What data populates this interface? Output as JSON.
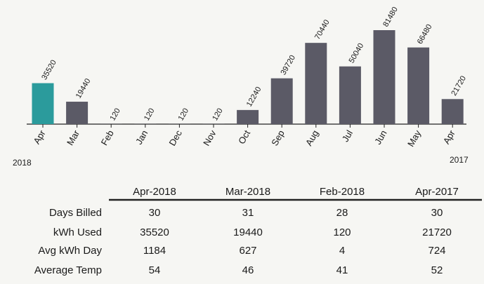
{
  "chart_data": {
    "type": "bar",
    "categories": [
      "Apr",
      "Mar",
      "Feb",
      "Jan",
      "Dec",
      "Nov",
      "Oct",
      "Sep",
      "Aug",
      "Jul",
      "Jun",
      "May",
      "Apr"
    ],
    "values": [
      35520,
      19440,
      120,
      120,
      120,
      120,
      12240,
      39720,
      70440,
      50040,
      81480,
      66480,
      21720
    ],
    "colors": [
      "#2b9b9c",
      "#5b5a66",
      "#5b5a66",
      "#5b5a66",
      "#5b5a66",
      "#5b5a66",
      "#5b5a66",
      "#5b5a66",
      "#5b5a66",
      "#5b5a66",
      "#5b5a66",
      "#5b5a66",
      "#5b5a66"
    ],
    "annotations": [
      "2018",
      "2017"
    ]
  },
  "table": {
    "columns": [
      "Apr-2018",
      "Mar-2018",
      "Feb-2018",
      "Apr-2017"
    ],
    "rows": [
      {
        "label": "Days Billed",
        "values": [
          30,
          31,
          28,
          30
        ]
      },
      {
        "label": "kWh Used",
        "values": [
          35520,
          19440,
          120,
          21720
        ]
      },
      {
        "label": "Avg kWh Day",
        "values": [
          1184,
          627,
          4,
          724
        ]
      },
      {
        "label": "Average Temp",
        "values": [
          54,
          46,
          41,
          52
        ]
      }
    ]
  }
}
